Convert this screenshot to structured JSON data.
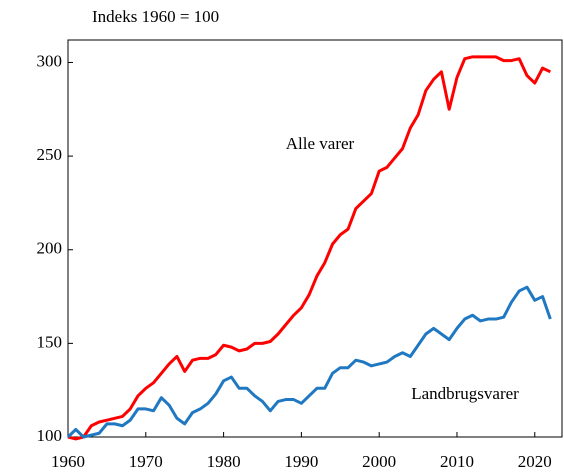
{
  "chart_data": {
    "type": "line",
    "subtitle": "Indeks 1960 = 100",
    "x": [
      1960,
      1961,
      1962,
      1963,
      1964,
      1965,
      1966,
      1967,
      1968,
      1969,
      1970,
      1971,
      1972,
      1973,
      1974,
      1975,
      1976,
      1977,
      1978,
      1979,
      1980,
      1981,
      1982,
      1983,
      1984,
      1985,
      1986,
      1987,
      1988,
      1989,
      1990,
      1991,
      1992,
      1993,
      1994,
      1995,
      1996,
      1997,
      1998,
      1999,
      2000,
      2001,
      2002,
      2003,
      2004,
      2005,
      2006,
      2007,
      2008,
      2009,
      2010,
      2011,
      2012,
      2013,
      2014,
      2015,
      2016,
      2017,
      2018,
      2019,
      2020,
      2021,
      2022
    ],
    "series": [
      {
        "name": "Alle varer",
        "color": "#ff0000",
        "values": [
          100,
          99,
          100,
          106,
          108,
          109,
          110,
          111,
          115,
          122,
          126,
          129,
          134,
          139,
          143,
          135,
          141,
          142,
          142,
          144,
          149,
          148,
          146,
          147,
          150,
          150,
          151,
          155,
          160,
          165,
          169,
          176,
          186,
          193,
          203,
          208,
          211,
          222,
          226,
          230,
          242,
          244,
          249,
          254,
          265,
          272,
          285,
          291,
          295,
          275,
          292,
          302,
          303,
          303,
          303,
          303,
          301,
          301,
          302,
          293,
          289,
          297,
          295
        ]
      },
      {
        "name": "Landbrugsvarer",
        "color": "#1f78c1",
        "values": [
          100,
          104,
          100,
          101,
          102,
          107,
          107,
          106,
          109,
          115,
          115,
          114,
          121,
          117,
          110,
          107,
          113,
          115,
          118,
          123,
          130,
          132,
          126,
          126,
          122,
          119,
          114,
          119,
          120,
          120,
          118,
          122,
          126,
          126,
          134,
          137,
          137,
          141,
          140,
          138,
          139,
          140,
          143,
          145,
          143,
          149,
          155,
          158,
          155,
          152,
          158,
          163,
          165,
          162,
          163,
          163,
          164,
          172,
          178,
          180,
          173,
          175,
          163
        ]
      }
    ],
    "xlim": [
      1960,
      2023.5
    ],
    "xticks": [
      1960,
      1970,
      1980,
      1990,
      2000,
      2010,
      2020
    ],
    "ylim": [
      100,
      312
    ],
    "yticks": [
      100,
      150,
      200,
      250,
      300
    ]
  }
}
